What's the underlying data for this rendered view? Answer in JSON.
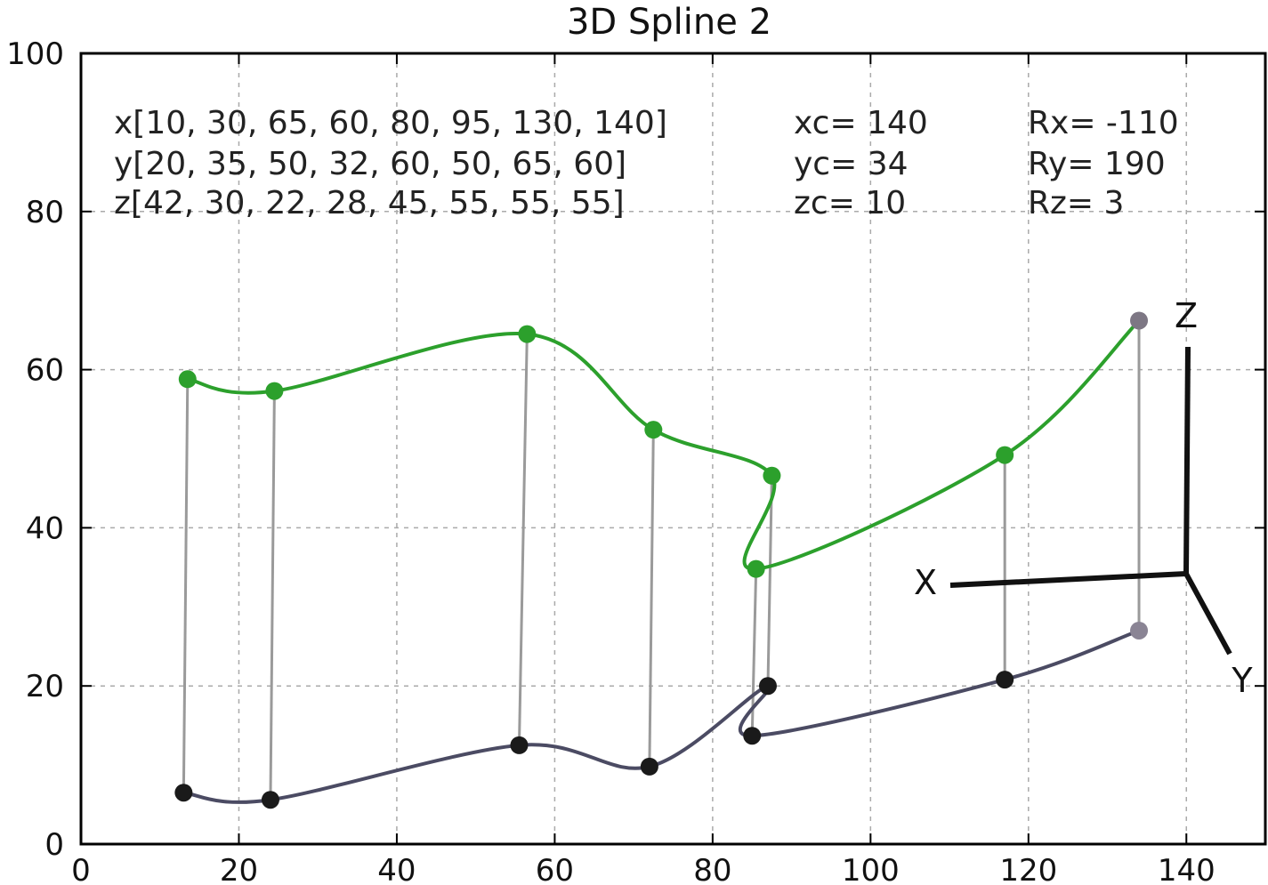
{
  "chart_data": {
    "type": "line",
    "title": "3D Spline 2",
    "xlabel": "",
    "ylabel": "",
    "xlim": [
      0,
      150
    ],
    "ylim": [
      0,
      100
    ],
    "x_ticks": [
      0,
      20,
      40,
      60,
      80,
      100,
      120,
      140
    ],
    "y_ticks": [
      0,
      20,
      40,
      60,
      80,
      100
    ],
    "grid": true,
    "annotations": {
      "x_line": "x[10, 30, 65, 60, 80, 95, 130, 140]",
      "y_line": "y[20, 35, 50, 32, 60, 50, 65, 60]",
      "z_line": "z[42, 30, 22, 28, 45, 55, 55, 55]",
      "xc": "xc= 140",
      "yc": "yc= 34",
      "zc": "zc= 10",
      "rx": "Rx=  -110",
      "ry": "Ry=  190",
      "rz": "Rz=   3"
    },
    "series": [
      {
        "color": "#2ca02c",
        "points": [
          [
            13.5,
            58.8
          ],
          [
            24.5,
            57.3
          ],
          [
            56.5,
            64.5
          ],
          [
            72.5,
            52.4
          ],
          [
            87.5,
            46.6
          ],
          [
            85.5,
            34.8
          ],
          [
            117.0,
            49.2
          ],
          [
            134.0,
            66.2
          ]
        ]
      },
      {
        "color": "#4b4b63",
        "points": [
          [
            13.0,
            6.5
          ],
          [
            24.0,
            5.6
          ],
          [
            55.5,
            12.5
          ],
          [
            72.0,
            9.8
          ],
          [
            87.0,
            20.0
          ],
          [
            85.0,
            13.7
          ],
          [
            117.0,
            20.8
          ],
          [
            134.0,
            27.0
          ]
        ]
      }
    ],
    "axes_glyph": {
      "labels": {
        "x": "X",
        "y": "Y",
        "z": "Z"
      },
      "color": "#111111"
    }
  }
}
